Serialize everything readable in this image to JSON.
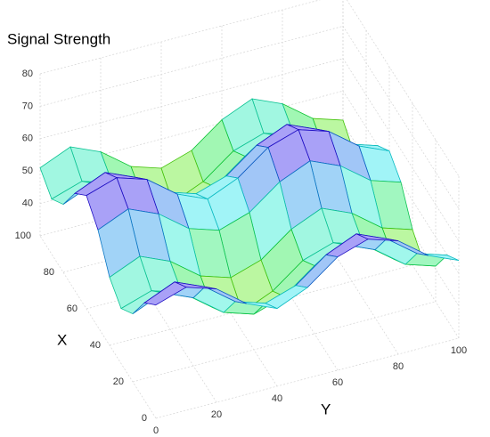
{
  "chart_data": {
    "type": "surface",
    "title": "Signal Strength",
    "xlabel": "X",
    "ylabel": "Y",
    "x": [
      0,
      10,
      20,
      30,
      40,
      50,
      60,
      70,
      80,
      90,
      100
    ],
    "y": [
      0,
      10,
      20,
      30,
      40,
      50,
      60,
      70,
      80,
      90,
      100
    ],
    "z": [
      [
        65,
        68,
        65,
        58,
        54,
        58,
        65,
        68,
        65,
        58,
        54
      ],
      [
        60,
        64,
        60,
        53,
        50,
        53,
        60,
        64,
        60,
        53,
        50
      ],
      [
        51,
        55,
        51,
        44,
        41,
        44,
        51,
        55,
        51,
        44,
        41
      ],
      [
        47,
        50,
        47,
        40,
        36,
        40,
        47,
        50,
        47,
        40,
        36
      ],
      [
        51,
        55,
        51,
        44,
        41,
        44,
        51,
        55,
        51,
        44,
        41
      ],
      [
        60,
        64,
        60,
        53,
        50,
        53,
        60,
        64,
        60,
        53,
        50
      ],
      [
        65,
        68,
        65,
        58,
        54,
        58,
        65,
        68,
        65,
        58,
        54
      ],
      [
        60,
        64,
        60,
        53,
        50,
        53,
        60,
        64,
        60,
        53,
        50
      ],
      [
        51,
        55,
        51,
        44,
        41,
        44,
        51,
        55,
        51,
        44,
        41
      ],
      [
        47,
        50,
        47,
        40,
        36,
        40,
        47,
        50,
        47,
        40,
        36
      ],
      [
        51,
        55,
        51,
        44,
        41,
        44,
        51,
        55,
        51,
        44,
        41
      ]
    ],
    "xlim": [
      0,
      100
    ],
    "ylim": [
      0,
      100
    ],
    "zlim": [
      30,
      80
    ],
    "xticks": [
      0,
      20,
      40,
      60,
      80,
      100
    ],
    "yticks": [
      0,
      20,
      40,
      60,
      80,
      100
    ],
    "zticks": [
      40,
      50,
      60,
      70,
      80
    ],
    "grid": true,
    "colormap": "hsv"
  }
}
